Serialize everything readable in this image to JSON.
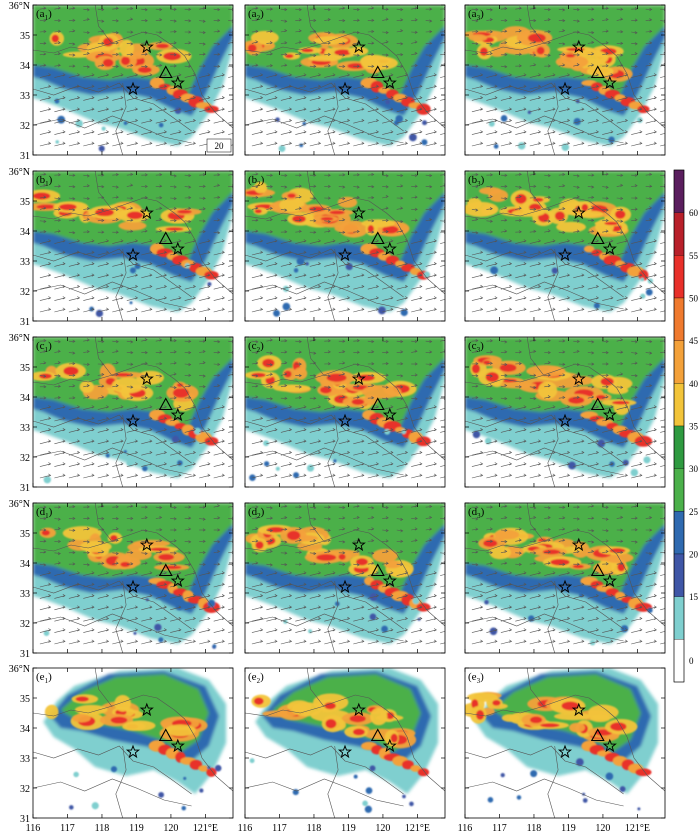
{
  "chart_data": {
    "type": "heatmap",
    "title": "",
    "layout": "5 rows x 3 columns of map panels",
    "longitude": {
      "ticks": [
        116,
        117,
        118,
        119,
        120,
        121
      ],
      "labels": [
        "116",
        "117",
        "118",
        "119",
        "120",
        "121°E"
      ]
    },
    "latitude": {
      "ticks": [
        31,
        32,
        33,
        34,
        35,
        36
      ],
      "labels": [
        "31",
        "32",
        "33",
        "34",
        "35",
        "36°N"
      ]
    },
    "xlim": [
      116,
      121.8
    ],
    "ylim": [
      31,
      36
    ],
    "panels": [
      {
        "label_letter": "a",
        "label_sub": "1",
        "winds": true,
        "wind_ref": "20"
      },
      {
        "label_letter": "a",
        "label_sub": "2",
        "winds": true
      },
      {
        "label_letter": "a",
        "label_sub": "3",
        "winds": true
      },
      {
        "label_letter": "b",
        "label_sub": "1",
        "winds": true
      },
      {
        "label_letter": "b",
        "label_sub": "2",
        "winds": true
      },
      {
        "label_letter": "b",
        "label_sub": "3",
        "winds": true
      },
      {
        "label_letter": "c",
        "label_sub": "1",
        "winds": true
      },
      {
        "label_letter": "c",
        "label_sub": "2",
        "winds": true
      },
      {
        "label_letter": "c",
        "label_sub": "3",
        "winds": true
      },
      {
        "label_letter": "d",
        "label_sub": "1",
        "winds": true
      },
      {
        "label_letter": "d",
        "label_sub": "2",
        "winds": true
      },
      {
        "label_letter": "d",
        "label_sub": "3",
        "winds": true
      },
      {
        "label_letter": "e",
        "label_sub": "1",
        "winds": false
      },
      {
        "label_letter": "e",
        "label_sub": "2",
        "winds": false
      },
      {
        "label_letter": "e",
        "label_sub": "3",
        "winds": false
      }
    ],
    "markers": {
      "stars": [
        [
          119.3,
          34.6
        ],
        [
          118.9,
          33.2
        ],
        [
          120.2,
          33.4
        ]
      ],
      "triangle": [
        119.85,
        33.75
      ]
    },
    "colorbar": {
      "levels": [
        0,
        15,
        20,
        25,
        30,
        35,
        40,
        45,
        50,
        55,
        60
      ],
      "labels": [
        "0",
        "15",
        "20",
        "25",
        "30",
        "35",
        "40",
        "45",
        "50",
        "55",
        "60"
      ],
      "colors": [
        "#ffffff",
        "#7fcfcf",
        "#3f56a6",
        "#2f6ab0",
        "#4bb04a",
        "#2e9a40",
        "#f2c43a",
        "#f3a13a",
        "#ef7a2e",
        "#e8302a",
        "#b8202a",
        "#5a1e5e"
      ]
    },
    "wind_color": "#555555",
    "coast_color": "#555555"
  }
}
